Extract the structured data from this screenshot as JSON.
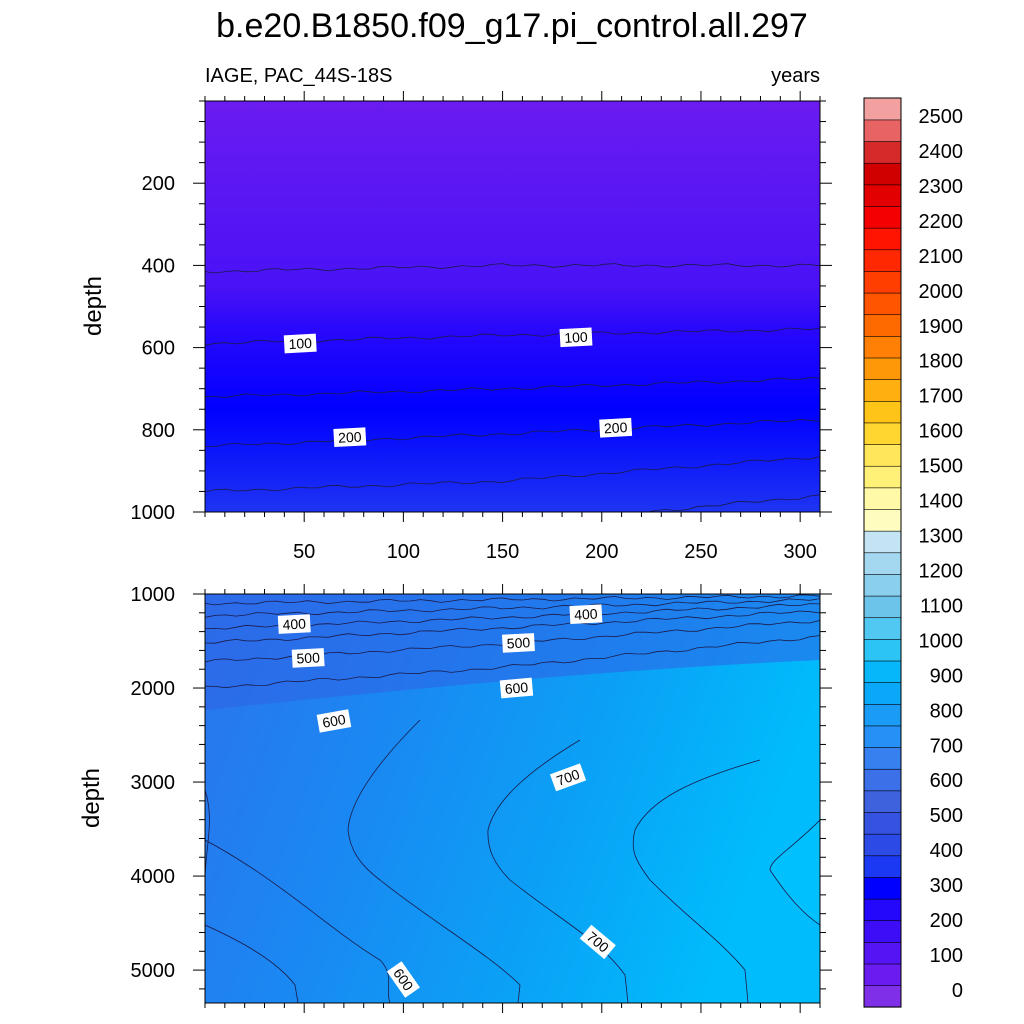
{
  "chart_data": {
    "type": "contour",
    "title": "b.e20.B1850.f09_g17.pi_control.all.297",
    "left_subtitle": "IAGE, PAC_44S-18S",
    "right_subtitle": "years",
    "xlabel": "",
    "ylabel": "depth",
    "x_ticks": [
      50,
      100,
      150,
      200,
      250,
      300
    ],
    "xlim": [
      0,
      310
    ],
    "upper_panel": {
      "ylim": [
        0,
        1000
      ],
      "y_ticks": [
        200,
        400,
        600,
        800,
        1000
      ],
      "contours": [
        {
          "level": 50,
          "depth_at_x": [
            [
              0,
              415
            ],
            [
              150,
              400
            ],
            [
              310,
              400
            ]
          ]
        },
        {
          "level": 100,
          "depth_at_x": [
            [
              0,
              590
            ],
            [
              150,
              570
            ],
            [
              310,
              555
            ]
          ]
        },
        {
          "level": 150,
          "depth_at_x": [
            [
              0,
              720
            ],
            [
              150,
              700
            ],
            [
              310,
              675
            ]
          ]
        },
        {
          "level": 200,
          "depth_at_x": [
            [
              0,
              840
            ],
            [
              150,
              810
            ],
            [
              310,
              775
            ]
          ]
        },
        {
          "level": 250,
          "depth_at_x": [
            [
              0,
              950
            ],
            [
              150,
              925
            ],
            [
              310,
              865
            ]
          ]
        },
        {
          "level": 300,
          "depth_at_x": [
            [
              0,
              1030
            ],
            [
              150,
              1030
            ],
            [
              200,
              1010
            ],
            [
              310,
              960
            ]
          ]
        }
      ],
      "contour_labels": [
        {
          "text": "100",
          "x": 48,
          "depth": 590
        },
        {
          "text": "100",
          "x": 187,
          "depth": 575
        },
        {
          "text": "200",
          "x": 73,
          "depth": 818
        },
        {
          "text": "200",
          "x": 207,
          "depth": 795
        }
      ]
    },
    "lower_panel": {
      "ylim": [
        1000,
        5350
      ],
      "y_ticks": [
        1000,
        2000,
        3000,
        4000,
        5000
      ],
      "contours": [
        {
          "level": 300,
          "depth_at_x": [
            [
              0,
              1100
            ],
            [
              150,
              1060
            ],
            [
              310,
              1020
            ]
          ]
        },
        {
          "level": 350,
          "depth_at_x": [
            [
              0,
              1230
            ],
            [
              150,
              1150
            ],
            [
              310,
              1060
            ]
          ]
        },
        {
          "level": 400,
          "depth_at_x": [
            [
              0,
              1370
            ],
            [
              150,
              1250
            ],
            [
              310,
              1110
            ]
          ]
        },
        {
          "level": 450,
          "depth_at_x": [
            [
              0,
              1520
            ],
            [
              150,
              1360
            ],
            [
              310,
              1180
            ]
          ]
        },
        {
          "level": 500,
          "depth_at_x": [
            [
              0,
              1720
            ],
            [
              150,
              1530
            ],
            [
              310,
              1280
            ]
          ]
        },
        {
          "level": 550,
          "depth_at_x": [
            [
              0,
              2000
            ],
            [
              150,
              1780
            ],
            [
              310,
              1450
            ]
          ]
        }
      ],
      "contour_labels": [
        {
          "text": "400",
          "x": 45,
          "depth": 1320
        },
        {
          "text": "400",
          "x": 192,
          "depth": 1215
        },
        {
          "text": "500",
          "x": 52,
          "depth": 1680
        },
        {
          "text": "500",
          "x": 158,
          "depth": 1520
        },
        {
          "text": "600",
          "x": 65,
          "depth": 2350,
          "angle": -10
        },
        {
          "text": "600",
          "x": 157,
          "depth": 2000,
          "angle": -5
        },
        {
          "text": "700",
          "x": 183,
          "depth": 2950,
          "angle": -20
        },
        {
          "text": "700",
          "x": 198,
          "depth": 4700,
          "angle": 40
        },
        {
          "text": "600",
          "x": 100,
          "depth": 5100,
          "angle": 55
        }
      ]
    },
    "colorbar": {
      "labels": [
        "0",
        "100",
        "200",
        "300",
        "400",
        "500",
        "600",
        "700",
        "800",
        "900",
        "1000",
        "1100",
        "1200",
        "1300",
        "1400",
        "1500",
        "1600",
        "1700",
        "1800",
        "1900",
        "2000",
        "2100",
        "2200",
        "2300",
        "2400",
        "2500"
      ],
      "colors": [
        "#7f2fe8",
        "#6a1bf0",
        "#5414f4",
        "#3d0df8",
        "#2408fc",
        "#0000ff",
        "#1b38f2",
        "#2b4ae6",
        "#3552e0",
        "#3e62de",
        "#3b70e8",
        "#3680f0",
        "#2690f6",
        "#1a9cf6",
        "#0aa8f8",
        "#06b8fa",
        "#2cc4f4",
        "#50c8f2",
        "#6cc4ea",
        "#8ad0ee",
        "#a4d8f0",
        "#c4e4f4",
        "#fffcc0",
        "#fff9a8",
        "#fff078",
        "#ffe65a",
        "#ffd630",
        "#ffc418",
        "#ffb010",
        "#ff9808",
        "#ff8004",
        "#ff6a00",
        "#ff5400",
        "#ff3e00",
        "#ff2800",
        "#ff1400",
        "#f40000",
        "#e20000",
        "#d00000",
        "#d62a2a",
        "#e86464",
        "#f2a0a0"
      ]
    }
  }
}
